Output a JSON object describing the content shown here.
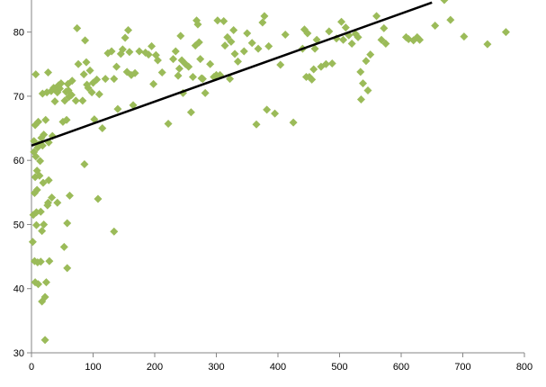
{
  "chart_data": {
    "type": "scatter",
    "title": "",
    "xlabel": "",
    "ylabel": "",
    "xlim": [
      0,
      800
    ],
    "ylim": [
      30,
      85
    ],
    "x_ticks": [
      0,
      100,
      200,
      300,
      400,
      500,
      600,
      700,
      800
    ],
    "y_ticks": [
      30,
      40,
      50,
      60,
      70,
      80
    ],
    "grid": false,
    "legend": "none",
    "marker_color": "#9BBB59",
    "trendline_color": "#000000",
    "trendline": {
      "x": [
        0,
        650
      ],
      "y": [
        62.3,
        84.6
      ]
    },
    "series": [
      {
        "name": "",
        "points": [
          [
            2,
            47.3
          ],
          [
            3,
            51.5
          ],
          [
            4,
            61.3
          ],
          [
            4,
            63.0
          ],
          [
            5,
            44.3
          ],
          [
            5,
            54.9
          ],
          [
            6,
            57.4
          ],
          [
            6,
            41.0
          ],
          [
            6,
            65.5
          ],
          [
            7,
            73.4
          ],
          [
            7,
            60.6
          ],
          [
            8,
            51.9
          ],
          [
            8,
            49.9
          ],
          [
            9,
            58.4
          ],
          [
            9,
            55.4
          ],
          [
            10,
            62.0
          ],
          [
            10,
            44.1
          ],
          [
            11,
            40.7
          ],
          [
            11,
            66.0
          ],
          [
            12,
            62.5
          ],
          [
            13,
            57.6
          ],
          [
            14,
            59.9
          ],
          [
            15,
            44.2
          ],
          [
            15,
            52.0
          ],
          [
            16,
            63.5
          ],
          [
            17,
            38.0
          ],
          [
            17,
            49.0
          ],
          [
            18,
            62.3
          ],
          [
            18,
            70.4
          ],
          [
            19,
            56.5
          ],
          [
            20,
            64.0
          ],
          [
            20,
            50.0
          ],
          [
            22,
            38.7
          ],
          [
            22,
            32.0
          ],
          [
            23,
            66.3
          ],
          [
            24,
            41.0
          ],
          [
            25,
            70.6
          ],
          [
            26,
            53.0
          ],
          [
            27,
            73.7
          ],
          [
            27,
            53.4
          ],
          [
            28,
            62.8
          ],
          [
            28,
            56.9
          ],
          [
            29,
            44.3
          ],
          [
            32,
            70.8
          ],
          [
            33,
            54.2
          ],
          [
            34,
            63.8
          ],
          [
            36,
            71.3
          ],
          [
            38,
            71.0
          ],
          [
            38,
            69.2
          ],
          [
            42,
            70.6
          ],
          [
            42,
            53.4
          ],
          [
            44,
            71.7
          ],
          [
            46,
            71.2
          ],
          [
            48,
            72.0
          ],
          [
            51,
            66.0
          ],
          [
            53,
            46.5
          ],
          [
            54,
            69.3
          ],
          [
            56,
            70.7
          ],
          [
            57,
            66.3
          ],
          [
            58,
            43.2
          ],
          [
            58,
            50.2
          ],
          [
            59,
            71.9
          ],
          [
            60,
            70.9
          ],
          [
            61,
            69.9
          ],
          [
            62,
            54.5
          ],
          [
            65,
            70.2
          ],
          [
            66,
            72.4
          ],
          [
            72,
            69.3
          ],
          [
            74,
            80.6
          ],
          [
            76,
            75.0
          ],
          [
            83,
            69.3
          ],
          [
            85,
            73.4
          ],
          [
            86,
            59.4
          ],
          [
            87,
            78.7
          ],
          [
            89,
            75.3
          ],
          [
            90,
            71.8
          ],
          [
            92,
            71.3
          ],
          [
            95,
            74.0
          ],
          [
            98,
            70.6
          ],
          [
            100,
            72.1
          ],
          [
            102,
            66.4
          ],
          [
            106,
            72.6
          ],
          [
            108,
            54.0
          ],
          [
            110,
            70.3
          ],
          [
            115,
            65.0
          ],
          [
            120,
            72.7
          ],
          [
            124,
            76.7
          ],
          [
            130,
            77.0
          ],
          [
            134,
            48.9
          ],
          [
            134,
            72.7
          ],
          [
            138,
            74.6
          ],
          [
            140,
            68.0
          ],
          [
            145,
            76.6
          ],
          [
            148,
            77.3
          ],
          [
            152,
            79.1
          ],
          [
            155,
            73.8
          ],
          [
            157,
            80.3
          ],
          [
            159,
            76.9
          ],
          [
            162,
            73.3
          ],
          [
            165,
            68.6
          ],
          [
            168,
            73.6
          ],
          [
            175,
            77.0
          ],
          [
            185,
            76.8
          ],
          [
            190,
            76.5
          ],
          [
            195,
            77.8
          ],
          [
            198,
            71.9
          ],
          [
            202,
            76.4
          ],
          [
            205,
            75.6
          ],
          [
            212,
            73.7
          ],
          [
            222,
            65.7
          ],
          [
            230,
            75.8
          ],
          [
            234,
            77.0
          ],
          [
            238,
            73.2
          ],
          [
            240,
            74.3
          ],
          [
            242,
            79.4
          ],
          [
            244,
            75.6
          ],
          [
            246,
            70.5
          ],
          [
            250,
            75.0
          ],
          [
            255,
            74.6
          ],
          [
            259,
            67.5
          ],
          [
            262,
            73.0
          ],
          [
            266,
            77.9
          ],
          [
            268,
            81.8
          ],
          [
            270,
            81.2
          ],
          [
            272,
            78.4
          ],
          [
            274,
            75.8
          ],
          [
            276,
            72.8
          ],
          [
            278,
            72.7
          ],
          [
            282,
            70.5
          ],
          [
            290,
            75.0
          ],
          [
            296,
            73.0
          ],
          [
            300,
            73.3
          ],
          [
            302,
            81.8
          ],
          [
            306,
            73.3
          ],
          [
            312,
            81.7
          ],
          [
            314,
            77.9
          ],
          [
            318,
            79.2
          ],
          [
            322,
            72.7
          ],
          [
            324,
            78.5
          ],
          [
            328,
            80.3
          ],
          [
            330,
            76.6
          ],
          [
            335,
            75.4
          ],
          [
            345,
            77.0
          ],
          [
            350,
            79.8
          ],
          [
            358,
            78.3
          ],
          [
            365,
            65.6
          ],
          [
            368,
            77.4
          ],
          [
            375,
            81.5
          ],
          [
            378,
            82.5
          ],
          [
            382,
            67.9
          ],
          [
            385,
            77.8
          ],
          [
            395,
            67.3
          ],
          [
            404,
            74.9
          ],
          [
            412,
            79.6
          ],
          [
            425,
            65.9
          ],
          [
            440,
            77.4
          ],
          [
            443,
            80.4
          ],
          [
            446,
            73.0
          ],
          [
            448,
            79.8
          ],
          [
            451,
            73.0
          ],
          [
            455,
            72.6
          ],
          [
            458,
            74.2
          ],
          [
            460,
            77.4
          ],
          [
            463,
            78.8
          ],
          [
            470,
            74.6
          ],
          [
            478,
            75.0
          ],
          [
            483,
            80.1
          ],
          [
            488,
            75.1
          ],
          [
            495,
            79.0
          ],
          [
            503,
            81.6
          ],
          [
            506,
            78.8
          ],
          [
            510,
            80.7
          ],
          [
            515,
            79.5
          ],
          [
            520,
            78.2
          ],
          [
            526,
            79.7
          ],
          [
            530,
            79.2
          ],
          [
            534,
            73.8
          ],
          [
            535,
            69.5
          ],
          [
            538,
            72.0
          ],
          [
            543,
            75.5
          ],
          [
            546,
            70.9
          ],
          [
            550,
            76.5
          ],
          [
            560,
            82.5
          ],
          [
            568,
            78.8
          ],
          [
            572,
            80.6
          ],
          [
            575,
            78.2
          ],
          [
            608,
            79.2
          ],
          [
            612,
            78.9
          ],
          [
            620,
            78.7
          ],
          [
            626,
            79.2
          ],
          [
            630,
            78.8
          ],
          [
            655,
            81.0
          ],
          [
            670,
            85.0
          ],
          [
            680,
            81.9
          ],
          [
            702,
            79.3
          ],
          [
            740,
            78.1
          ],
          [
            770,
            80.0
          ]
        ]
      }
    ]
  }
}
